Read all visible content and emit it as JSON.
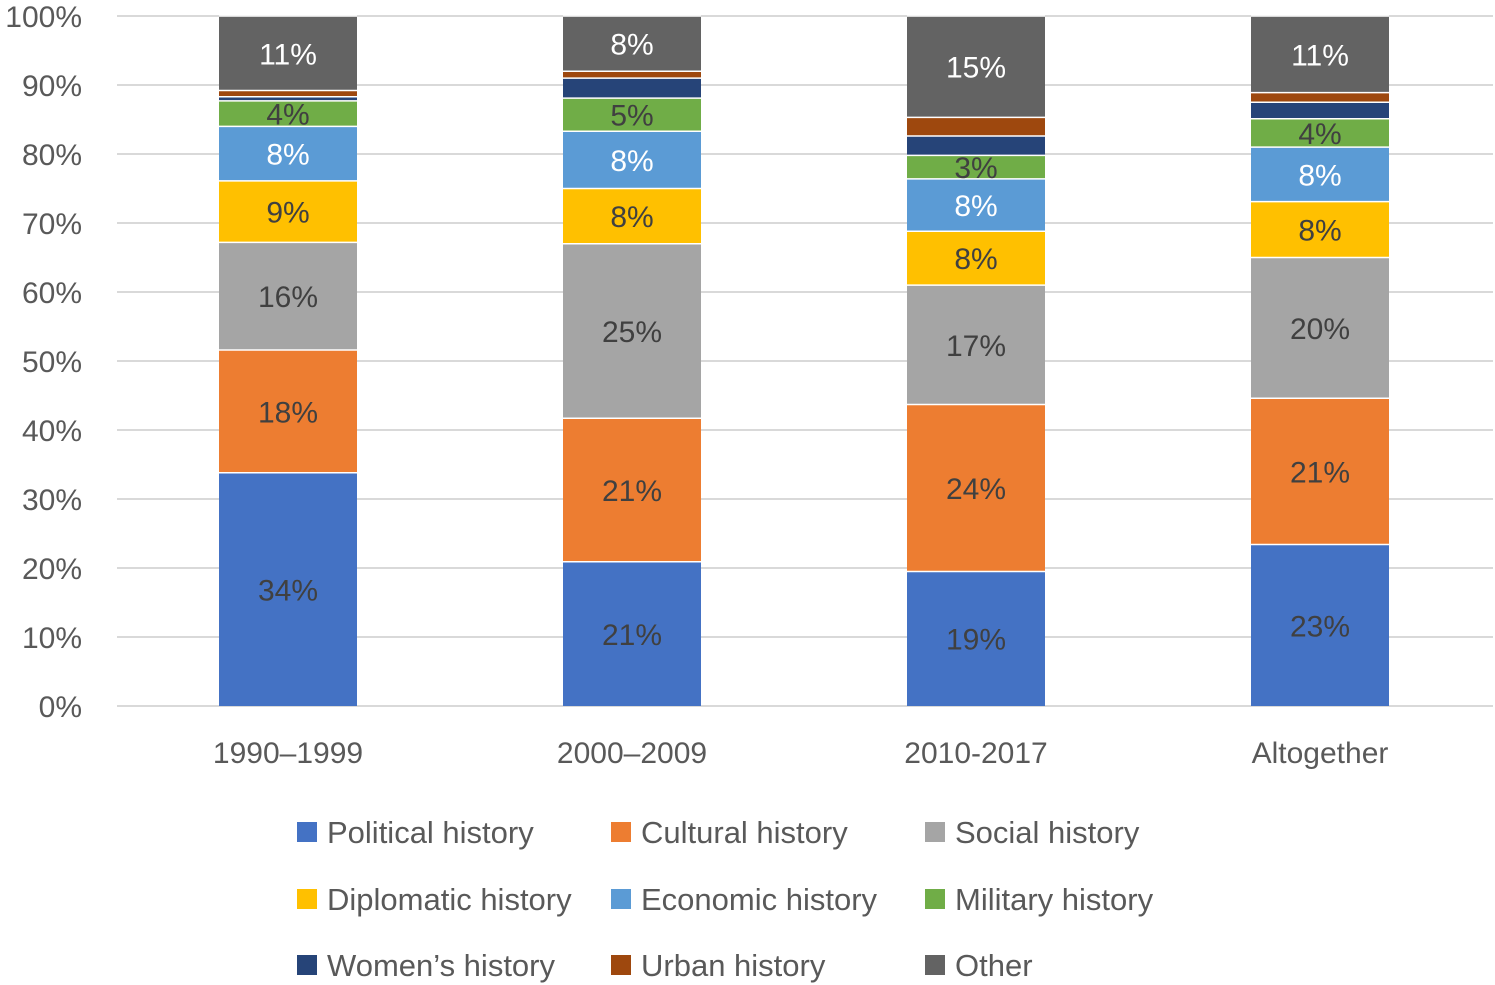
{
  "chart_data": {
    "type": "bar",
    "stacked": true,
    "percent_stacked": true,
    "title": "",
    "xlabel": "",
    "ylabel": "",
    "ylim": [
      0,
      100
    ],
    "yticks": [
      "0%",
      "10%",
      "20%",
      "30%",
      "40%",
      "50%",
      "60%",
      "70%",
      "80%",
      "90%",
      "100%"
    ],
    "grid": true,
    "legend_position": "bottom",
    "categories": [
      "1990–1999",
      "2000–2009",
      "2010-2017",
      "Altogether"
    ],
    "series": [
      {
        "name": "Political history",
        "color": "#4472C4",
        "values": [
          33.8,
          20.9,
          19.5,
          23.4
        ],
        "labels": [
          "34%",
          "21%",
          "19%",
          "23%"
        ],
        "label_color": "#404040"
      },
      {
        "name": "Cultural history",
        "color": "#ED7D31",
        "values": [
          17.8,
          20.8,
          24.2,
          21.2
        ],
        "labels": [
          "18%",
          "21%",
          "24%",
          "21%"
        ],
        "label_color": "#404040"
      },
      {
        "name": "Social history",
        "color": "#A5A5A5",
        "values": [
          15.6,
          25.3,
          17.3,
          20.4
        ],
        "labels": [
          "16%",
          "25%",
          "17%",
          "20%"
        ],
        "label_color": "#404040"
      },
      {
        "name": "Diplomatic history",
        "color": "#FFC000",
        "values": [
          8.9,
          8.0,
          7.8,
          8.1
        ],
        "labels": [
          "9%",
          "8%",
          "8%",
          "8%"
        ],
        "label_color": "#404040"
      },
      {
        "name": "Economic history",
        "color": "#5B9BD5",
        "values": [
          7.9,
          8.3,
          7.6,
          7.9
        ],
        "labels": [
          "8%",
          "8%",
          "8%",
          "8%"
        ],
        "label_color": "#ffffff"
      },
      {
        "name": "Military history",
        "color": "#70AD47",
        "values": [
          3.7,
          4.8,
          3.4,
          4.1
        ],
        "labels": [
          "4%",
          "5%",
          "3%",
          "4%"
        ],
        "label_color": "#404040"
      },
      {
        "name": "Women’s history",
        "color": "#264478",
        "values": [
          0.6,
          2.9,
          2.8,
          2.4
        ],
        "labels": [
          "",
          "",
          "",
          ""
        ],
        "label_color": "#ffffff"
      },
      {
        "name": "Urban history",
        "color": "#9E480E",
        "values": [
          0.9,
          1.0,
          2.7,
          1.4
        ],
        "labels": [
          "",
          "",
          "",
          ""
        ],
        "label_color": "#ffffff"
      },
      {
        "name": "Other",
        "color": "#636363",
        "values": [
          10.8,
          8.0,
          14.7,
          11.1
        ],
        "labels": [
          "11%",
          "8%",
          "15%",
          "11%"
        ],
        "label_color": "#ffffff"
      }
    ]
  }
}
